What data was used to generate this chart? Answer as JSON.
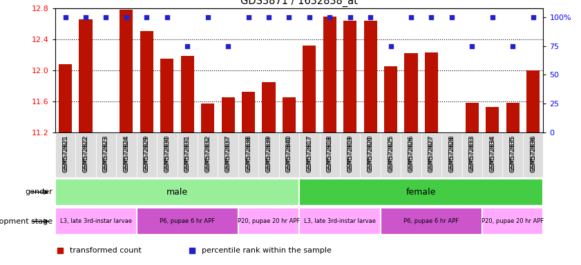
{
  "title": "GDS3871 / 1632838_at",
  "samples": [
    "GSM572821",
    "GSM572822",
    "GSM572823",
    "GSM572824",
    "GSM572829",
    "GSM572830",
    "GSM572831",
    "GSM572832",
    "GSM572837",
    "GSM572838",
    "GSM572839",
    "GSM572840",
    "GSM572817",
    "GSM572818",
    "GSM572819",
    "GSM572820",
    "GSM572825",
    "GSM572826",
    "GSM572827",
    "GSM572828",
    "GSM572833",
    "GSM572834",
    "GSM572835",
    "GSM572836"
  ],
  "bar_values": [
    12.08,
    12.65,
    11.2,
    12.78,
    12.5,
    12.15,
    12.18,
    11.57,
    11.65,
    11.72,
    11.85,
    11.65,
    12.32,
    12.69,
    12.64,
    12.64,
    12.05,
    12.22,
    12.23,
    11.2,
    11.58,
    11.53,
    11.58,
    12.0
  ],
  "percentile_values": [
    100,
    100,
    100,
    100,
    100,
    100,
    75,
    100,
    75,
    100,
    100,
    100,
    100,
    100,
    100,
    100,
    75,
    100,
    100,
    100,
    75,
    100,
    75,
    100
  ],
  "bar_color": "#bb1100",
  "dot_color": "#2222cc",
  "ymin": 11.2,
  "ymax": 12.8,
  "yticks_left": [
    11.2,
    11.6,
    12.0,
    12.4,
    12.8
  ],
  "y2ticks": [
    0,
    25,
    50,
    75,
    100
  ],
  "grid_lines": [
    11.6,
    12.0,
    12.4
  ],
  "gender_regions": [
    {
      "label": "male",
      "start": 0,
      "end": 12,
      "color": "#99ee99"
    },
    {
      "label": "female",
      "start": 12,
      "end": 24,
      "color": "#44cc44"
    }
  ],
  "stage_regions": [
    {
      "label": "L3, late 3rd-instar larvae",
      "start": 0,
      "end": 4,
      "color": "#ffaaff"
    },
    {
      "label": "P6, pupae 6 hr APF",
      "start": 4,
      "end": 9,
      "color": "#cc55cc"
    },
    {
      "label": "P20, pupae 20 hr APF",
      "start": 9,
      "end": 12,
      "color": "#ffaaff"
    },
    {
      "label": "L3, late 3rd-instar larvae",
      "start": 12,
      "end": 16,
      "color": "#ffaaff"
    },
    {
      "label": "P6, pupae 6 hr APF",
      "start": 16,
      "end": 21,
      "color": "#cc55cc"
    },
    {
      "label": "P20, pupae 20 hr APF",
      "start": 21,
      "end": 24,
      "color": "#ffaaff"
    }
  ],
  "legend_red_label": "transformed count",
  "legend_blue_label": "percentile rank within the sample",
  "gender_label": "gender",
  "stage_label": "development stage"
}
